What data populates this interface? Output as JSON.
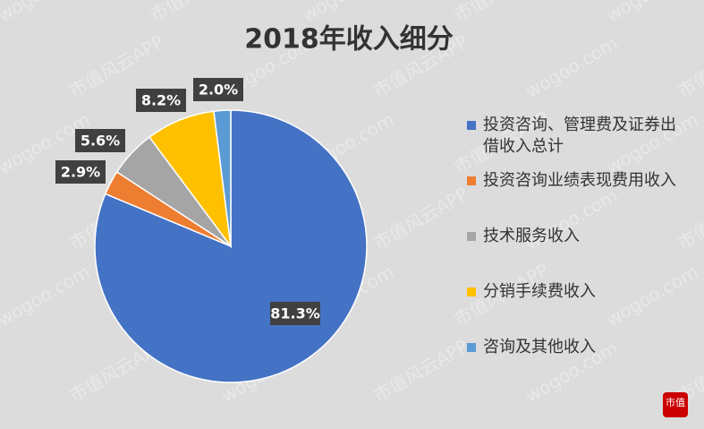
{
  "chart_data": {
    "type": "pie",
    "title": "2018年收入细分",
    "categories": [
      "投资咨询、管理费及证券出借收入总计",
      "投资咨询业绩表现费用收入",
      "技术服务收入",
      "分销手续费收入",
      "咨询及其他收入"
    ],
    "values": [
      81.3,
      2.9,
      5.6,
      8.2,
      2.0
    ],
    "value_labels": [
      "81.3%",
      "2.9%",
      "5.6%",
      "8.2%",
      "2.0%"
    ],
    "colors": [
      "#4472c4",
      "#ed7d31",
      "#a5a5a5",
      "#ffc000",
      "#5b9bd5"
    ],
    "legend": "right"
  },
  "watermark": {
    "site": "wogoo.com",
    "app": "市值风云APP",
    "logo": "市值"
  }
}
